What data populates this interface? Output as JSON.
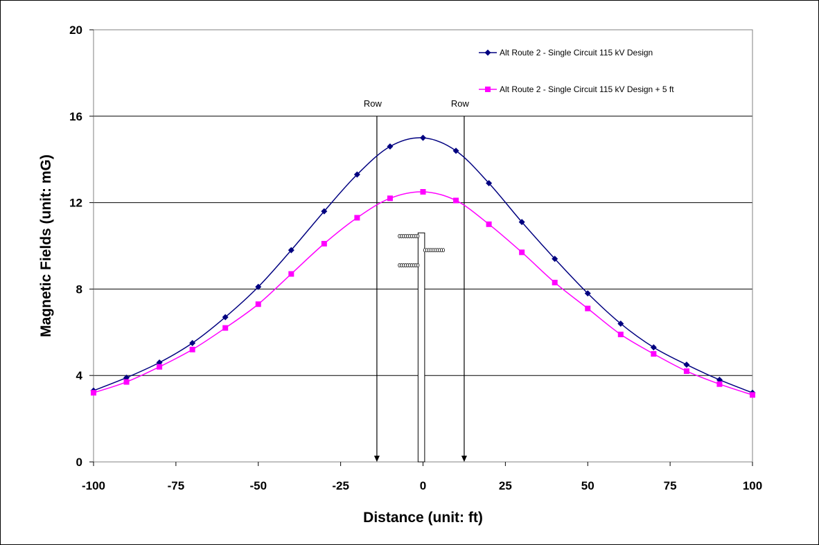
{
  "chart_data": {
    "type": "line",
    "title": "",
    "xlabel": "Distance (unit: ft)",
    "ylabel": "Magnetic Fields (unit: mG)",
    "xlim": [
      -100,
      100
    ],
    "ylim": [
      0,
      20
    ],
    "x_ticks": [
      -100,
      -75,
      -50,
      -25,
      0,
      25,
      50,
      75,
      100
    ],
    "x_tick_labels": [
      "-100",
      "-75",
      "-50",
      "-25",
      "0",
      "25",
      "50",
      "75",
      "100"
    ],
    "y_ticks": [
      0,
      4,
      8,
      12,
      16,
      20
    ],
    "y_tick_labels": [
      "0",
      "4",
      "8",
      "12",
      "16",
      "20"
    ],
    "grid": "horizontal",
    "legend_position": "top-right",
    "series": [
      {
        "name": "Alt Route 2 - Single Circuit 115 kV Design",
        "color": "#000080",
        "marker": "diamond",
        "x": [
          -100,
          -90,
          -80,
          -70,
          -60,
          -50,
          -40,
          -30,
          -20,
          -10,
          0,
          10,
          20,
          30,
          40,
          50,
          60,
          70,
          80,
          90,
          100
        ],
        "y": [
          3.3,
          3.9,
          4.6,
          5.5,
          6.7,
          8.1,
          9.8,
          11.6,
          13.3,
          14.6,
          15.0,
          14.4,
          12.9,
          11.1,
          9.4,
          7.8,
          6.4,
          5.3,
          4.5,
          3.8,
          3.2
        ]
      },
      {
        "name": "Alt Route 2 - Single Circuit 115 kV Design + 5 ft",
        "color": "#FF00FF",
        "marker": "square",
        "x": [
          -100,
          -90,
          -80,
          -70,
          -60,
          -50,
          -40,
          -30,
          -20,
          -10,
          0,
          10,
          20,
          30,
          40,
          50,
          60,
          70,
          80,
          90,
          100
        ],
        "y": [
          3.2,
          3.7,
          4.4,
          5.2,
          6.2,
          7.3,
          8.7,
          10.1,
          11.3,
          12.2,
          12.5,
          12.1,
          11.0,
          9.7,
          8.3,
          7.1,
          5.9,
          5.0,
          4.2,
          3.6,
          3.1
        ]
      }
    ],
    "annotations": [
      {
        "label": "Row",
        "x": -14,
        "y_top": 16,
        "y_bottom": 0
      },
      {
        "label": "Row",
        "x": 12.5,
        "y_top": 16,
        "y_bottom": 0
      }
    ],
    "tower": {
      "x": -0.5,
      "y_top": 10.6,
      "width_ft": 2,
      "conductors": [
        {
          "x_start": -7.5,
          "x_end": -1.2,
          "y": 10.45
        },
        {
          "x_start": 0.2,
          "x_end": 6.5,
          "y": 9.8
        },
        {
          "x_start": -7.5,
          "x_end": -1.2,
          "y": 9.1
        }
      ]
    }
  }
}
